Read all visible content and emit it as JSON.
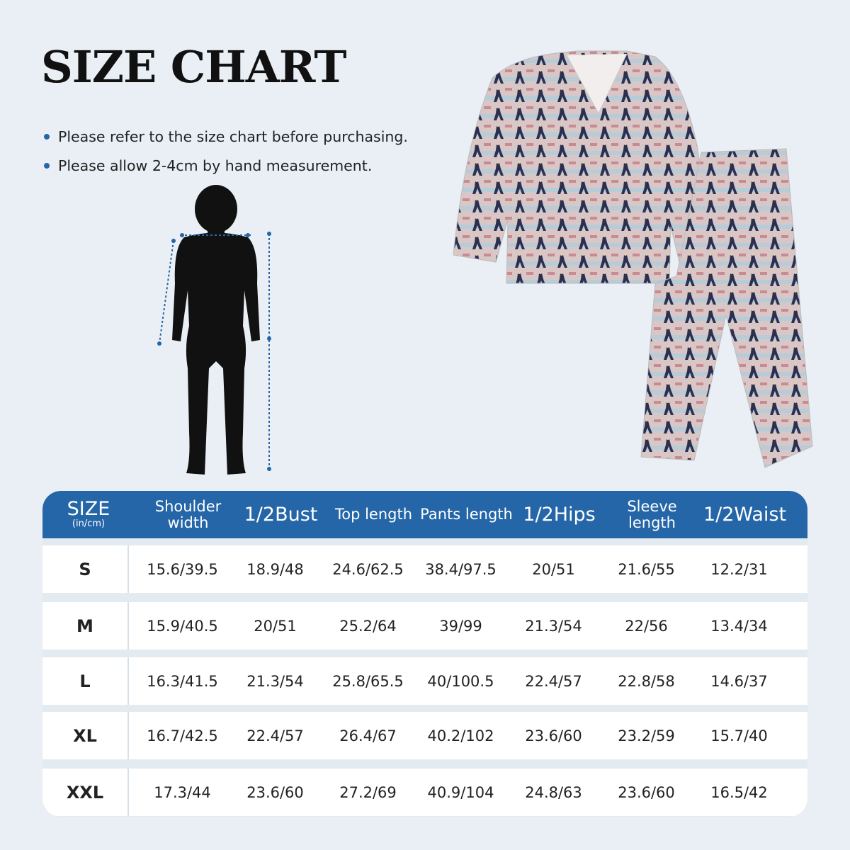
{
  "title": "SIZE CHART",
  "notes": [
    "Please refer to the size chart before purchasing.",
    "Please allow 2-4cm by hand measurement."
  ],
  "colors": {
    "header": "#2466a8",
    "background": "#e9eff4"
  },
  "table": {
    "size_header": "SIZE",
    "size_unit": "(in/cm)",
    "columns": [
      "Shoulder width",
      "1/2Bust",
      "Top length",
      "Pants length",
      "1/2Hips",
      "Sleeve length",
      "1/2Waist"
    ],
    "rows": [
      {
        "size": "S",
        "values": [
          "15.6/39.5",
          "18.9/48",
          "24.6/62.5",
          "38.4/97.5",
          "20/51",
          "21.6/55",
          "12.2/31"
        ]
      },
      {
        "size": "M",
        "values": [
          "15.9/40.5",
          "20/51",
          "25.2/64",
          "39/99",
          "21.3/54",
          "22/56",
          "13.4/34"
        ]
      },
      {
        "size": "L",
        "values": [
          "16.3/41.5",
          "21.3/54",
          "25.8/65.5",
          "40/100.5",
          "22.4/57",
          "22.8/58",
          "14.6/37"
        ]
      },
      {
        "size": "XL",
        "values": [
          "16.7/42.5",
          "22.4/57",
          "26.4/67",
          "40.2/102",
          "23.6/60",
          "23.2/59",
          "15.7/40"
        ]
      },
      {
        "size": "XXL",
        "values": [
          "17.3/44",
          "23.6/60",
          "27.2/69",
          "40.9/104",
          "24.8/63",
          "23.6/60",
          "16.5/42"
        ]
      }
    ]
  }
}
